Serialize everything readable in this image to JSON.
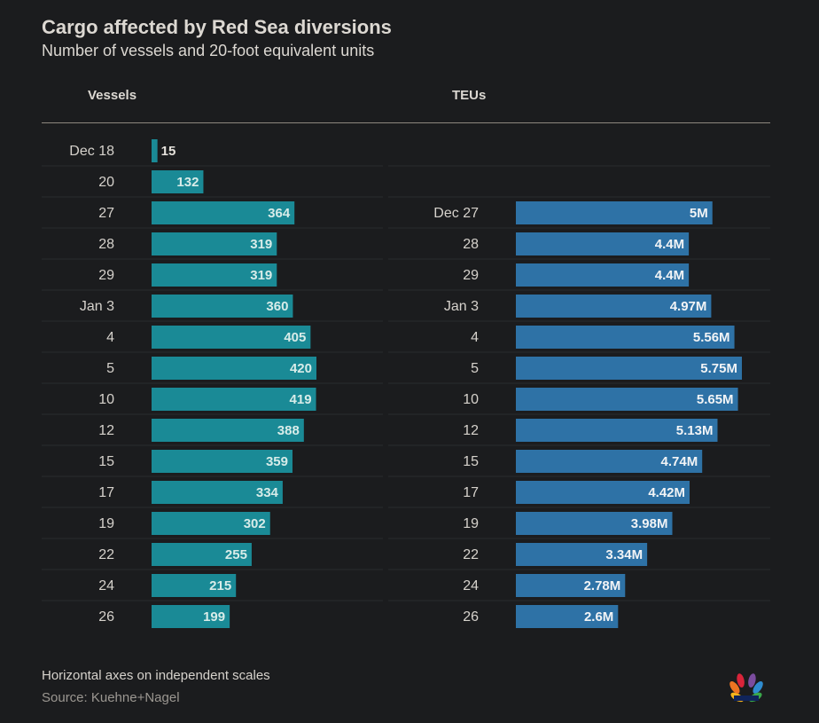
{
  "header": {
    "title": "Cargo affected by Red Sea diversions",
    "subtitle": "Number of vessels and 20-foot equivalent units",
    "col_vessels": "Vessels",
    "col_teus": "TEUs"
  },
  "footer": {
    "note": "Horizontal axes on independent scales",
    "source": "Source: Kuehne+Nagel"
  },
  "logo": {
    "name": "CNBC"
  },
  "colors": {
    "vessels": "#1a8a96",
    "teus": "#2e72a6",
    "background": "#1b1c1e",
    "row_line": "#2a2b2e"
  },
  "chart_data": [
    {
      "type": "bar",
      "orientation": "horizontal",
      "title": "Vessels",
      "categories": [
        "Dec 18",
        "20",
        "27",
        "28",
        "29",
        "Jan 3",
        "4",
        "5",
        "10",
        "12",
        "15",
        "17",
        "19",
        "22",
        "24",
        "26"
      ],
      "values": [
        15,
        132,
        364,
        319,
        319,
        360,
        405,
        420,
        419,
        388,
        359,
        334,
        302,
        255,
        215,
        199
      ],
      "labels": [
        "15",
        "132",
        "364",
        "319",
        "319",
        "360",
        "405",
        "420",
        "419",
        "388",
        "359",
        "334",
        "302",
        "255",
        "215",
        "199"
      ],
      "xlim": [
        0,
        420
      ]
    },
    {
      "type": "bar",
      "orientation": "horizontal",
      "title": "TEUs",
      "categories": [
        "Dec 27",
        "28",
        "29",
        "Jan 3",
        "4",
        "5",
        "10",
        "12",
        "15",
        "17",
        "19",
        "22",
        "24",
        "26"
      ],
      "values": [
        5000000,
        4400000,
        4400000,
        4970000,
        5560000,
        5750000,
        5650000,
        5130000,
        4740000,
        4420000,
        3980000,
        3340000,
        2780000,
        2600000
      ],
      "labels": [
        "5M",
        "4.4M",
        "4.4M",
        "4.97M",
        "5.56M",
        "5.75M",
        "5.65M",
        "5.13M",
        "4.74M",
        "4.42M",
        "3.98M",
        "3.34M",
        "2.78M",
        "2.6M"
      ],
      "xlim": [
        0,
        5750000
      ]
    }
  ]
}
